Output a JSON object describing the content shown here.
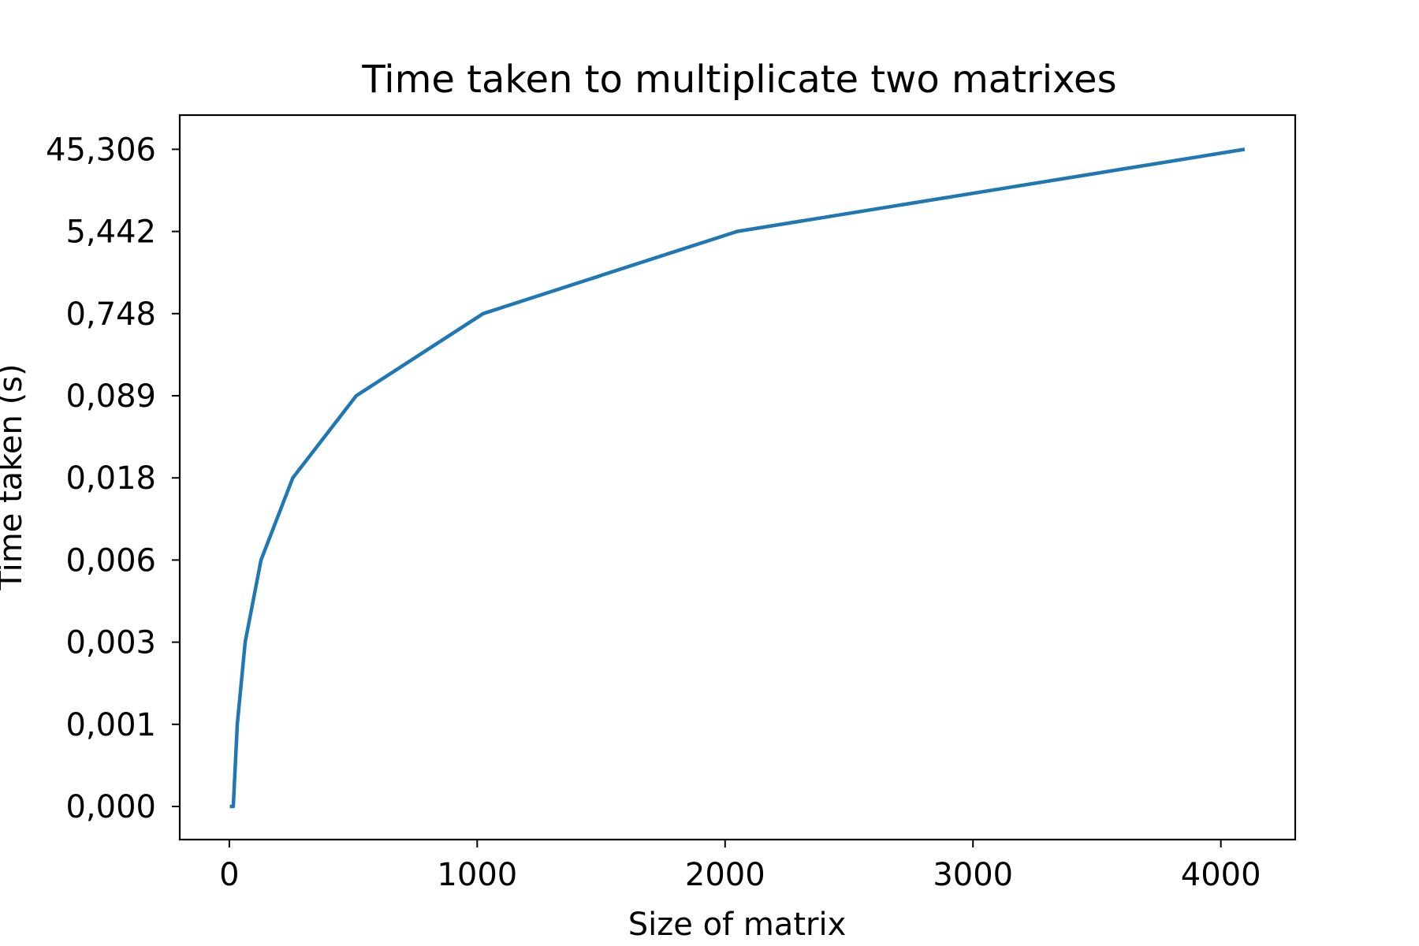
{
  "chart_data": {
    "type": "line",
    "title": "Time taken to multiplicate two matrixes",
    "xlabel": "Size of matrix",
    "ylabel": "Time taken (s)",
    "x_scale": "linear",
    "y_scale": "categorical-step",
    "xlim": [
      -200,
      4300
    ],
    "x_ticks": [
      0,
      1000,
      2000,
      3000,
      4000
    ],
    "x_tick_labels": [
      "0",
      "1000",
      "2000",
      "3000",
      "4000"
    ],
    "y_tick_labels": [
      "0,000",
      "0,001",
      "0,003",
      "0,006",
      "0,018",
      "0,089",
      "0,748",
      "5,442",
      "45,306"
    ],
    "grid": false,
    "legend": "none",
    "line_color": "#1f77b4",
    "series": [
      {
        "x": [
          2,
          4,
          8,
          16,
          32,
          64,
          128,
          256,
          512,
          1024,
          2048,
          4096
        ],
        "y": [
          "0,000",
          "0,000",
          "0,000",
          "0,000",
          "0,001",
          "0,003",
          "0,006",
          "0,018",
          "0,089",
          "0,748",
          "5,442",
          "45,306"
        ]
      }
    ]
  }
}
